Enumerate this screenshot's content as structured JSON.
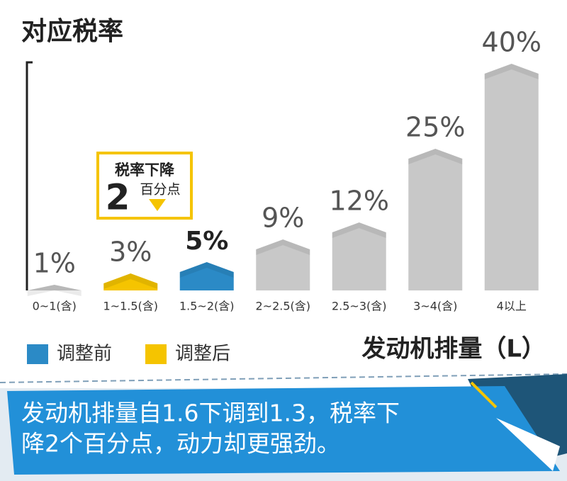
{
  "chart_data": {
    "type": "bar",
    "title": "对应税率",
    "x_label": "发动机排量（L）",
    "categories": [
      "0~1(含)",
      "1~1.5(含)",
      "1.5~2(含)",
      "2~2.5(含)",
      "2.5~3(含)",
      "3~4(含)",
      "4以上"
    ],
    "values": [
      1,
      3,
      5,
      9,
      12,
      25,
      40
    ],
    "value_labels": [
      "1%",
      "3%",
      "5%",
      "9%",
      "12%",
      "25%",
      "40%"
    ],
    "colors": [
      "#c8c8c8",
      "#f5c400",
      "#2b8ac6",
      "#c8c8c8",
      "#c8c8c8",
      "#c8c8c8",
      "#c8c8c8"
    ],
    "legend": [
      {
        "name": "调整前",
        "color": "#2b8ac6"
      },
      {
        "name": "调整后",
        "color": "#f5c400"
      }
    ],
    "annotation": {
      "line1": "税率下降",
      "number": "2",
      "unit": "百分点"
    },
    "caption": [
      "发动机排量自1.6下调到1.3，税率下",
      "降2个百分点，动力却更强劲。"
    ]
  }
}
